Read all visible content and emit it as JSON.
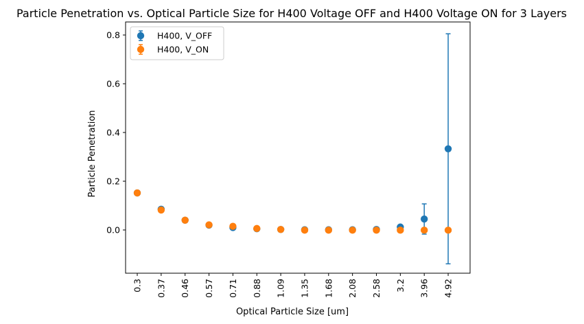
{
  "chart_data": {
    "type": "scatter",
    "title": "Particle Penetration vs. Optical Particle Size for H400 Voltage OFF and H400 Voltage ON for 3 Layers",
    "xlabel": "Optical Particle Size [um]",
    "ylabel": "Particle Penetration",
    "categories": [
      "0.3",
      "0.37",
      "0.46",
      "0.57",
      "0.71",
      "0.88",
      "1.09",
      "1.35",
      "1.68",
      "2.08",
      "2.58",
      "3.2",
      "3.96",
      "4.92"
    ],
    "ylim": [
      -0.18,
      0.86
    ],
    "yticks": [
      0.0,
      0.2,
      0.4,
      0.6,
      0.8
    ],
    "ytick_labels": [
      "0.0",
      "0.2",
      "0.4",
      "0.6",
      "0.8"
    ],
    "grid": false,
    "legend_position": "upper-left",
    "series": [
      {
        "name": "H400, V_OFF",
        "color": "#1f77b4",
        "values": [
          0.152,
          0.085,
          0.04,
          0.02,
          0.01,
          0.005,
          0.002,
          0.001,
          0.001,
          0.001,
          0.002,
          0.012,
          0.045,
          0.333
        ],
        "errors": [
          0.003,
          0.004,
          0.002,
          0.002,
          0.003,
          0.002,
          0.001,
          0.001,
          0.001,
          0.001,
          0.002,
          0.008,
          0.062,
          0.472
        ]
      },
      {
        "name": "H400, V_ON",
        "color": "#ff7f0e",
        "values": [
          0.152,
          0.082,
          0.04,
          0.021,
          0.015,
          0.006,
          0.002,
          -0.001,
          -0.001,
          -0.001,
          -0.001,
          -0.001,
          -0.001,
          -0.001
        ],
        "errors": [
          0.002,
          0.003,
          0.002,
          0.002,
          0.002,
          0.001,
          0.001,
          0.001,
          0.001,
          0.001,
          0.001,
          0.001,
          0.001,
          0.001
        ]
      }
    ]
  }
}
